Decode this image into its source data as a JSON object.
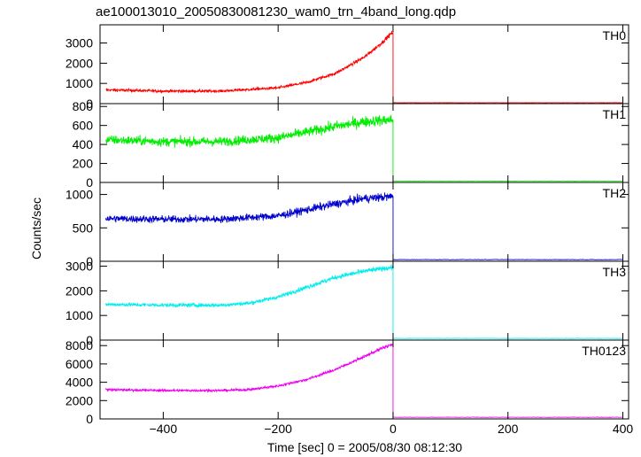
{
  "chart_data": {
    "type": "line",
    "title": "ae100013010_20050830081230_wam0_trn_4band_long.qdp",
    "xlabel": "Time [sec] 0 = 2005/08/30 08:12:30",
    "ylabel": "Counts/sec",
    "xlim": [
      -510,
      410
    ],
    "x_ticks": [
      -400,
      -200,
      0,
      200,
      400
    ],
    "x_tick_labels": [
      "−400",
      "−200",
      "0",
      "200",
      "400"
    ],
    "drop_time": 0,
    "panels": [
      {
        "name": "TH0",
        "color": "#ff0000",
        "ylim": [
          0,
          3900
        ],
        "yticks": [
          0,
          1000,
          2000,
          3000
        ],
        "ytick_labels": [
          "0",
          "1000",
          "2000",
          "3000"
        ],
        "profile": [
          [
            -500,
            680
          ],
          [
            -400,
            620
          ],
          [
            -300,
            620
          ],
          [
            -200,
            780
          ],
          [
            -150,
            1050
          ],
          [
            -100,
            1500
          ],
          [
            -50,
            2300
          ],
          [
            -20,
            3000
          ],
          [
            -2,
            3500
          ]
        ],
        "noise": 70,
        "after": 45
      },
      {
        "name": "TH1",
        "color": "#00ee00",
        "ylim": [
          0,
          830
        ],
        "yticks": [
          0,
          200,
          400,
          600,
          800
        ],
        "ytick_labels": [
          "0",
          "200",
          "400",
          "600",
          "800"
        ],
        "profile": [
          [
            -500,
            450
          ],
          [
            -400,
            430
          ],
          [
            -300,
            430
          ],
          [
            -200,
            470
          ],
          [
            -150,
            530
          ],
          [
            -100,
            590
          ],
          [
            -50,
            640
          ],
          [
            -2,
            660
          ]
        ],
        "noise": 40,
        "after": 15
      },
      {
        "name": "TH2",
        "color": "#0000cc",
        "ylim": [
          0,
          1180
        ],
        "yticks": [
          0,
          500,
          1000
        ],
        "ytick_labels": [
          "0",
          "500",
          "1000"
        ],
        "profile": [
          [
            -500,
            640
          ],
          [
            -400,
            630
          ],
          [
            -300,
            630
          ],
          [
            -200,
            680
          ],
          [
            -150,
            770
          ],
          [
            -100,
            860
          ],
          [
            -50,
            940
          ],
          [
            -2,
            970
          ]
        ],
        "noise": 45,
        "after": 25
      },
      {
        "name": "TH3",
        "color": "#00eeee",
        "ylim": [
          0,
          3200
        ],
        "yticks": [
          0,
          1000,
          2000,
          3000
        ],
        "ytick_labels": [
          "0",
          "1000",
          "2000",
          "3000"
        ],
        "profile": [
          [
            -500,
            1450
          ],
          [
            -400,
            1420
          ],
          [
            -300,
            1420
          ],
          [
            -250,
            1500
          ],
          [
            -200,
            1750
          ],
          [
            -150,
            2150
          ],
          [
            -100,
            2550
          ],
          [
            -50,
            2800
          ],
          [
            -2,
            2950
          ]
        ],
        "noise": 70,
        "after": 70
      },
      {
        "name": "TH0123",
        "color": "#ee00ee",
        "ylim": [
          0,
          8600
        ],
        "yticks": [
          0,
          2000,
          4000,
          6000,
          8000
        ],
        "ytick_labels": [
          "0",
          "2000",
          "4000",
          "6000",
          "8000"
        ],
        "profile": [
          [
            -500,
            3200
          ],
          [
            -400,
            3100
          ],
          [
            -300,
            3100
          ],
          [
            -250,
            3200
          ],
          [
            -200,
            3600
          ],
          [
            -150,
            4300
          ],
          [
            -100,
            5400
          ],
          [
            -50,
            6800
          ],
          [
            -20,
            7700
          ],
          [
            -2,
            8100
          ]
        ],
        "noise": 120,
        "after": 180
      }
    ]
  }
}
